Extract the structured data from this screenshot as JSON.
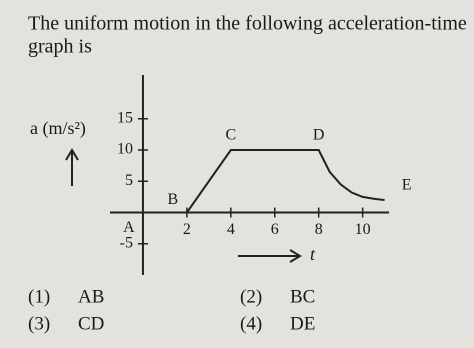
{
  "question": {
    "lines": [
      "The uniform motion in the following acceleration-time",
      "graph is"
    ]
  },
  "chart_data": {
    "type": "line",
    "y_label": "a (m/s²)",
    "x_label": "t",
    "x": [
      0,
      2,
      4,
      8,
      8.5,
      9,
      9.5,
      10,
      10.5,
      11
    ],
    "series": [
      {
        "color": "#222",
        "values": [
          0,
          0,
          10,
          10,
          6.5,
          4.5,
          3.2,
          2.5,
          2.2,
          2
        ],
        "point_labels": [
          "A",
          "B",
          "C",
          "D",
          null,
          null,
          null,
          null,
          null,
          "E"
        ]
      }
    ],
    "xlim": [
      -1.5,
      11.2
    ],
    "ylim": [
      -10,
      22
    ],
    "xticks": [
      2,
      4,
      6,
      8,
      10
    ],
    "yticks": [
      -5,
      5,
      10,
      15
    ]
  },
  "options": [
    {
      "number": "(1)",
      "text": "AB"
    },
    {
      "number": "(2)",
      "text": "BC"
    },
    {
      "number": "(3)",
      "text": "CD"
    },
    {
      "number": "(4)",
      "text": "DE"
    }
  ]
}
